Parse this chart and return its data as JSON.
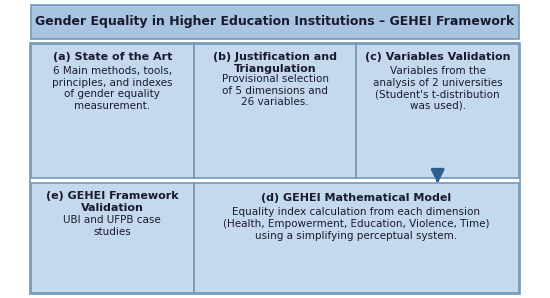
{
  "title": "Gender Equality in Higher Education Institutions – GEHEI Framework",
  "title_bg": "#a8c4e0",
  "title_text_color": "#1a1a2e",
  "box_bg": "#c5d9ee",
  "box_border": "#7398b8",
  "outer_border": "#7398b8",
  "outer_bg": "#ffffff",
  "arrow_color": "#2d5f8a",
  "box_a_label": "(a) State of the Art",
  "box_a_body": "6 Main methods, tools,\nprinciples, and indexes\nof gender equality\nmeasurement.",
  "box_b_label": "(b) Justification and\nTriangulation",
  "box_b_body": "Provisional selection\nof 5 dimensions and\n26 variables.",
  "box_c_label": "(c) Variables Validation",
  "box_c_body": "Variables from the\nanalysis of 2 universities\n(Student's t-distribution\nwas used).",
  "box_d_label": "(d) GEHEI Mathematical Model",
  "box_d_body": "Equality index calculation from each dimension\n(Health, Empowerment, Education, Violence, Time)\nusing a simplifying perceptual system.",
  "box_e_label": "(e) GEHEI Framework\nValidation",
  "box_e_body": "UBI and UFPB case\nstudies",
  "figw": 5.5,
  "figh": 2.98,
  "dpi": 100
}
